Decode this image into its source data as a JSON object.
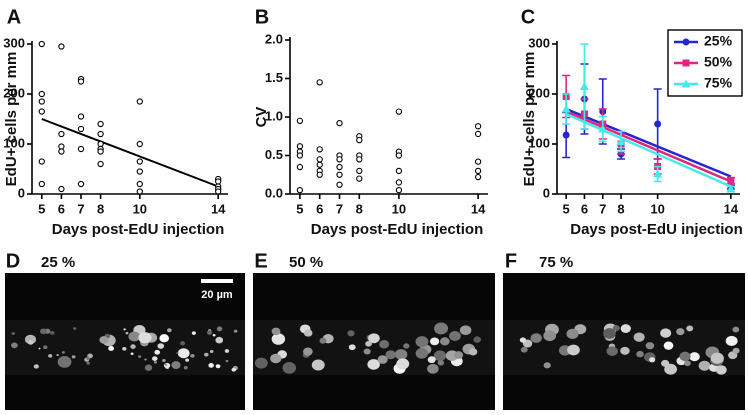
{
  "chart_data": [
    {
      "type": "scatter",
      "panel": "A",
      "x_label": "Days post-EdU injection",
      "y_label": "EdU+ cells per mm",
      "xlim": [
        4.5,
        14.5
      ],
      "xticks": [
        5,
        6,
        7,
        8,
        10,
        14
      ],
      "ylim": [
        0,
        300
      ],
      "yticks": [
        0,
        100,
        200,
        300
      ],
      "x": [
        5,
        5,
        5,
        5,
        5,
        5,
        6,
        6,
        6,
        6,
        6,
        7,
        7,
        7,
        7,
        7,
        7,
        8,
        8,
        8,
        8,
        8,
        8,
        10,
        10,
        10,
        10,
        10,
        10,
        14,
        14,
        14,
        14,
        14
      ],
      "values": [
        300,
        200,
        185,
        165,
        65,
        20,
        295,
        120,
        95,
        85,
        10,
        230,
        225,
        155,
        130,
        90,
        20,
        140,
        120,
        100,
        90,
        85,
        60,
        185,
        100,
        65,
        45,
        20,
        5,
        30,
        25,
        15,
        10,
        5
      ],
      "trend": {
        "x": [
          5,
          14
        ],
        "values": [
          150,
          15
        ]
      }
    },
    {
      "type": "scatter",
      "panel": "B",
      "x_label": "Days post-EdU injection",
      "y_label": "CV",
      "xlim": [
        4.5,
        14.5
      ],
      "xticks": [
        5,
        6,
        7,
        8,
        10,
        14
      ],
      "ylim": [
        0,
        2
      ],
      "yticks": [
        {
          "value": 0,
          "label": "0.0"
        },
        0.5,
        {
          "value": 1,
          "label": "1.0"
        },
        1.5,
        {
          "value": 2,
          "label": "2.0"
        }
      ],
      "x": [
        5,
        5,
        5,
        5,
        5,
        5,
        6,
        6,
        6,
        6,
        6,
        6,
        7,
        7,
        7,
        7,
        7,
        7,
        8,
        8,
        8,
        8,
        8,
        8,
        10,
        10,
        10,
        10,
        10,
        10,
        14,
        14,
        14,
        14,
        14
      ],
      "values": [
        0.95,
        0.62,
        0.55,
        0.5,
        0.35,
        0.05,
        1.45,
        0.58,
        0.45,
        0.38,
        0.3,
        0.25,
        0.92,
        0.5,
        0.45,
        0.35,
        0.25,
        0.12,
        0.75,
        0.7,
        0.5,
        0.45,
        0.3,
        0.2,
        1.07,
        0.55,
        0.5,
        0.3,
        0.15,
        0.05,
        0.88,
        0.78,
        0.42,
        0.3,
        0.22
      ]
    },
    {
      "type": "errorbar",
      "panel": "C",
      "x_label": "Days post-EdU injection",
      "y_label": "EdU+ cells per mm",
      "xlim": [
        4.5,
        14.5
      ],
      "xticks": [
        5,
        6,
        7,
        8,
        10,
        14
      ],
      "ylim": [
        0,
        300
      ],
      "yticks": [
        0,
        100,
        200,
        300
      ],
      "x": [
        5,
        6,
        7,
        8,
        10,
        14
      ],
      "legend": "upper right",
      "series": [
        {
          "name": "25%",
          "color": "#2626cc",
          "marker": "circle",
          "values": [
            118,
            190,
            165,
            80,
            140,
            15
          ],
          "errors": [
            45,
            70,
            65,
            10,
            70,
            5
          ],
          "trend": {
            "x": [
              5,
              14
            ],
            "values": [
              170,
              35
            ]
          }
        },
        {
          "name": "50%",
          "color": "#e0267e",
          "marker": "square",
          "values": [
            195,
            160,
            140,
            100,
            55,
            25
          ],
          "errors": [
            42,
            30,
            30,
            20,
            15,
            8
          ],
          "trend": {
            "x": [
              5,
              14
            ],
            "values": [
              165,
              25
            ]
          }
        },
        {
          "name": "75%",
          "color": "#44eaea",
          "marker": "triangle",
          "values": [
            170,
            215,
            130,
            105,
            40,
            10
          ],
          "errors": [
            30,
            85,
            25,
            20,
            15,
            5
          ],
          "trend": {
            "x": [
              5,
              14
            ],
            "values": [
              160,
              15
            ]
          }
        }
      ]
    }
  ],
  "images": [
    {
      "letter": "D",
      "label": "25 %",
      "scale_bar": "20 µm"
    },
    {
      "letter": "E",
      "label": "50 %"
    },
    {
      "letter": "F",
      "label": "75 %"
    }
  ]
}
